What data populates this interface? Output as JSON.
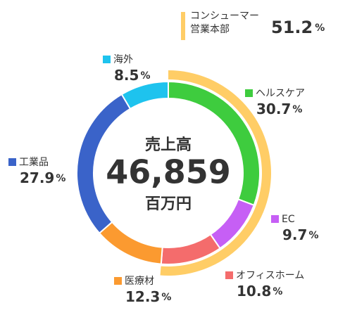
{
  "chart_data": {
    "type": "donut",
    "categories": [
      "ヘルスケア",
      "EC",
      "オフィスホーム",
      "医療材",
      "工業品",
      "海外"
    ],
    "values": [
      30.7,
      9.7,
      10.8,
      12.3,
      27.9,
      8.5
    ],
    "colors": [
      "#3ecc3e",
      "#c65ff5",
      "#f46c6c",
      "#fb9a30",
      "#3a63c9",
      "#1ec3ee"
    ],
    "unit": "%",
    "center_title": "売上高",
    "center_value": "46,859",
    "center_unit": "百万円",
    "group": {
      "name_lines": [
        "コンシューマー",
        "営業本部"
      ],
      "value": 51.2,
      "color": "#ffcd66"
    }
  }
}
